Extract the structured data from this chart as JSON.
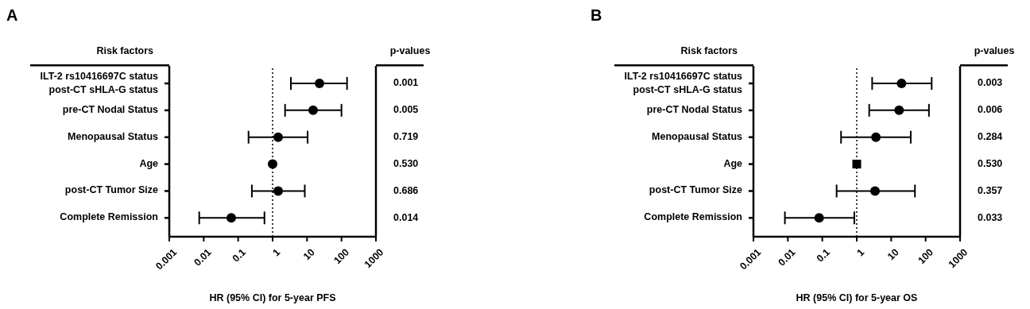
{
  "chart_data": [
    {
      "type": "scatter",
      "orientation": "horizontal",
      "title": "A",
      "xlabel": "HR (95% CI) for 5-year PFS",
      "ylabel": "Risk factors",
      "y2label": "p-values",
      "categories": [
        "ILT-2 rs10416697C status\npost-CT sHLA-G status",
        "pre-CT Nodal Status",
        "Menopausal Status",
        "Age",
        "post-CT Tumor Size",
        "Complete Remission"
      ],
      "y2_categories": [
        "0.001",
        "0.005",
        "0.719",
        "0.530",
        "0.686",
        "0.014"
      ],
      "series": [
        {
          "color": "#000000",
          "marker": "circle",
          "values": [
            23,
            15,
            1.45,
            1,
            1.45,
            0.063
          ],
          "errors": [
            [
              3.4,
              145
            ],
            [
              2.3,
              100
            ],
            [
              0.2,
              10.4
            ],
            null,
            [
              0.25,
              8.6
            ],
            [
              0.0074,
              0.58
            ]
          ]
        }
      ],
      "log": "x",
      "xlim": [
        0.001,
        1000
      ],
      "xticks": [
        0.001,
        0.01,
        0.1,
        1,
        10,
        100,
        1000
      ],
      "ref_lines": [
        {
          "axis": "x",
          "value": 1,
          "line_style": "dotted",
          "color": "#000000"
        }
      ]
    },
    {
      "type": "scatter",
      "orientation": "horizontal",
      "title": "B",
      "xlabel": "HR (95% CI) for 5-year OS",
      "ylabel": "Risk factors",
      "y2label": "p-values",
      "categories": [
        "ILT-2 rs10416697C status\npost-CT sHLA-G status",
        "pre-CT Nodal Status",
        "Menopausal Status",
        "Age",
        "post-CT Tumor Size",
        "Complete Remission"
      ],
      "y2_categories": [
        "0.003",
        "0.006",
        "0.284",
        "0.530",
        "0.357",
        "0.033"
      ],
      "series": [
        {
          "color": "#000000",
          "marker": "circle",
          "values": [
            20,
            17,
            3.6,
            null,
            3.4,
            0.081
          ],
          "errors": [
            [
              2.8,
              150
            ],
            [
              2.3,
              125
            ],
            [
              0.35,
              37
            ],
            null,
            [
              0.26,
              49
            ],
            [
              0.0082,
              0.85
            ]
          ]
        },
        {
          "color": "#000000",
          "marker": "square",
          "values": [
            null,
            null,
            null,
            1,
            null,
            null
          ]
        }
      ],
      "log": "x",
      "xlim": [
        0.001,
        1000
      ],
      "xticks": [
        0.001,
        0.01,
        0.1,
        1,
        10,
        100,
        1000
      ],
      "ref_lines": [
        {
          "axis": "x",
          "value": 1,
          "line_style": "dotted",
          "color": "#000000"
        }
      ]
    }
  ]
}
